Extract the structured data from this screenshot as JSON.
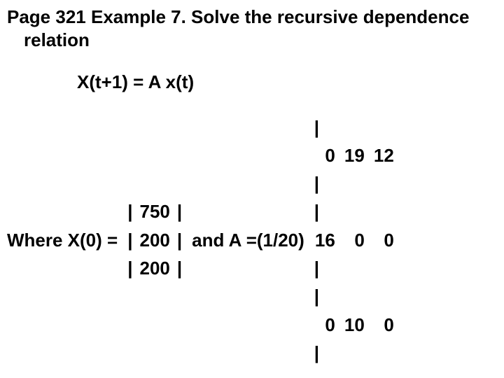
{
  "title": "Page 321 Example 7.  Solve the recursive dependence relation",
  "equation": "X(t+1) = A x(t)",
  "where_label": "Where X(0) =",
  "and_label": "and A =(1/20)",
  "vector_X0": [
    "750",
    "200",
    "200"
  ],
  "matrix_A": [
    [
      "0",
      "19",
      "12"
    ],
    [
      "16",
      "0",
      "0"
    ],
    [
      "0",
      "10",
      "0"
    ]
  ],
  "bar": "|"
}
